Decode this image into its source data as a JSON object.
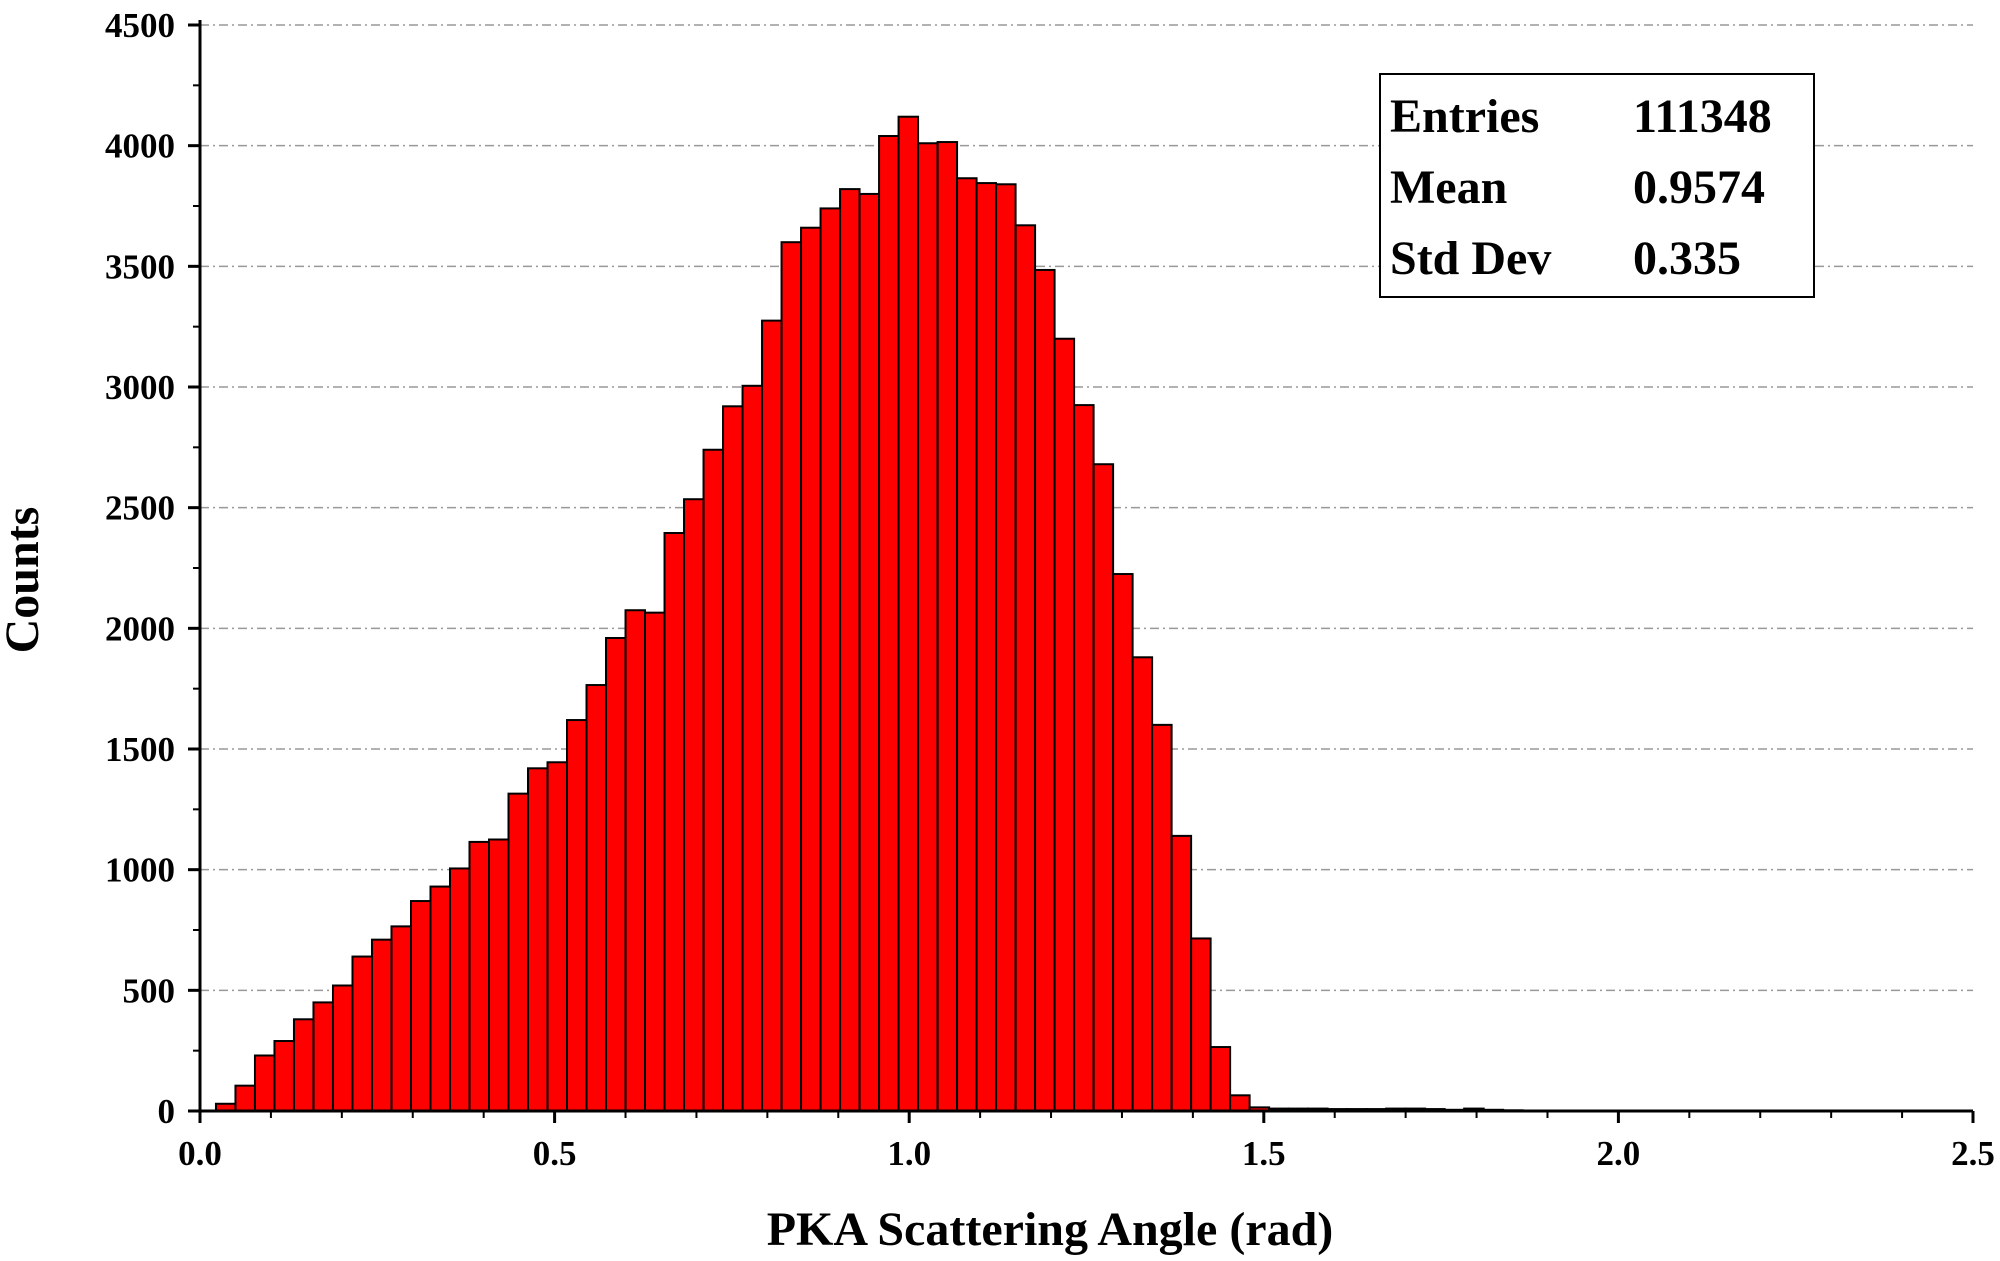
{
  "chart_data": {
    "type": "bar",
    "title": "",
    "xlabel": "PKA Scattering Angle (rad)",
    "ylabel": "Counts",
    "xlim": [
      0,
      2.5
    ],
    "ylim": [
      0,
      4500
    ],
    "bin_width": 0.0275,
    "bin_start": 0.0225,
    "grid": true,
    "bar_color": "#ff0000",
    "edge_color": "#000000",
    "x_ticks": [
      "0.0",
      "0.5",
      "1.0",
      "1.5",
      "2.0",
      "2.5"
    ],
    "y_ticks": [
      "0",
      "500",
      "1000",
      "1500",
      "2000",
      "2500",
      "3000",
      "3500",
      "4000",
      "4500"
    ],
    "values": [
      30,
      105,
      230,
      290,
      380,
      450,
      520,
      640,
      710,
      765,
      870,
      930,
      1005,
      1115,
      1125,
      1315,
      1420,
      1445,
      1620,
      1765,
      1960,
      2075,
      2065,
      2395,
      2535,
      2740,
      2920,
      3005,
      3275,
      3600,
      3660,
      3740,
      3820,
      3800,
      4040,
      4120,
      4010,
      4015,
      3865,
      3845,
      3840,
      3670,
      3485,
      3200,
      2925,
      2680,
      2225,
      1880,
      1600,
      1140,
      715,
      265,
      65,
      15,
      10,
      10,
      10,
      8,
      8,
      8,
      10,
      10,
      8,
      5,
      10,
      5,
      3,
      2
    ],
    "legend_box": {
      "position": "top-right",
      "rows": [
        {
          "label": "Entries",
          "value": "111348"
        },
        {
          "label": "Mean",
          "value": "0.9574"
        },
        {
          "label": "Std Dev",
          "value": "0.335"
        }
      ]
    }
  }
}
